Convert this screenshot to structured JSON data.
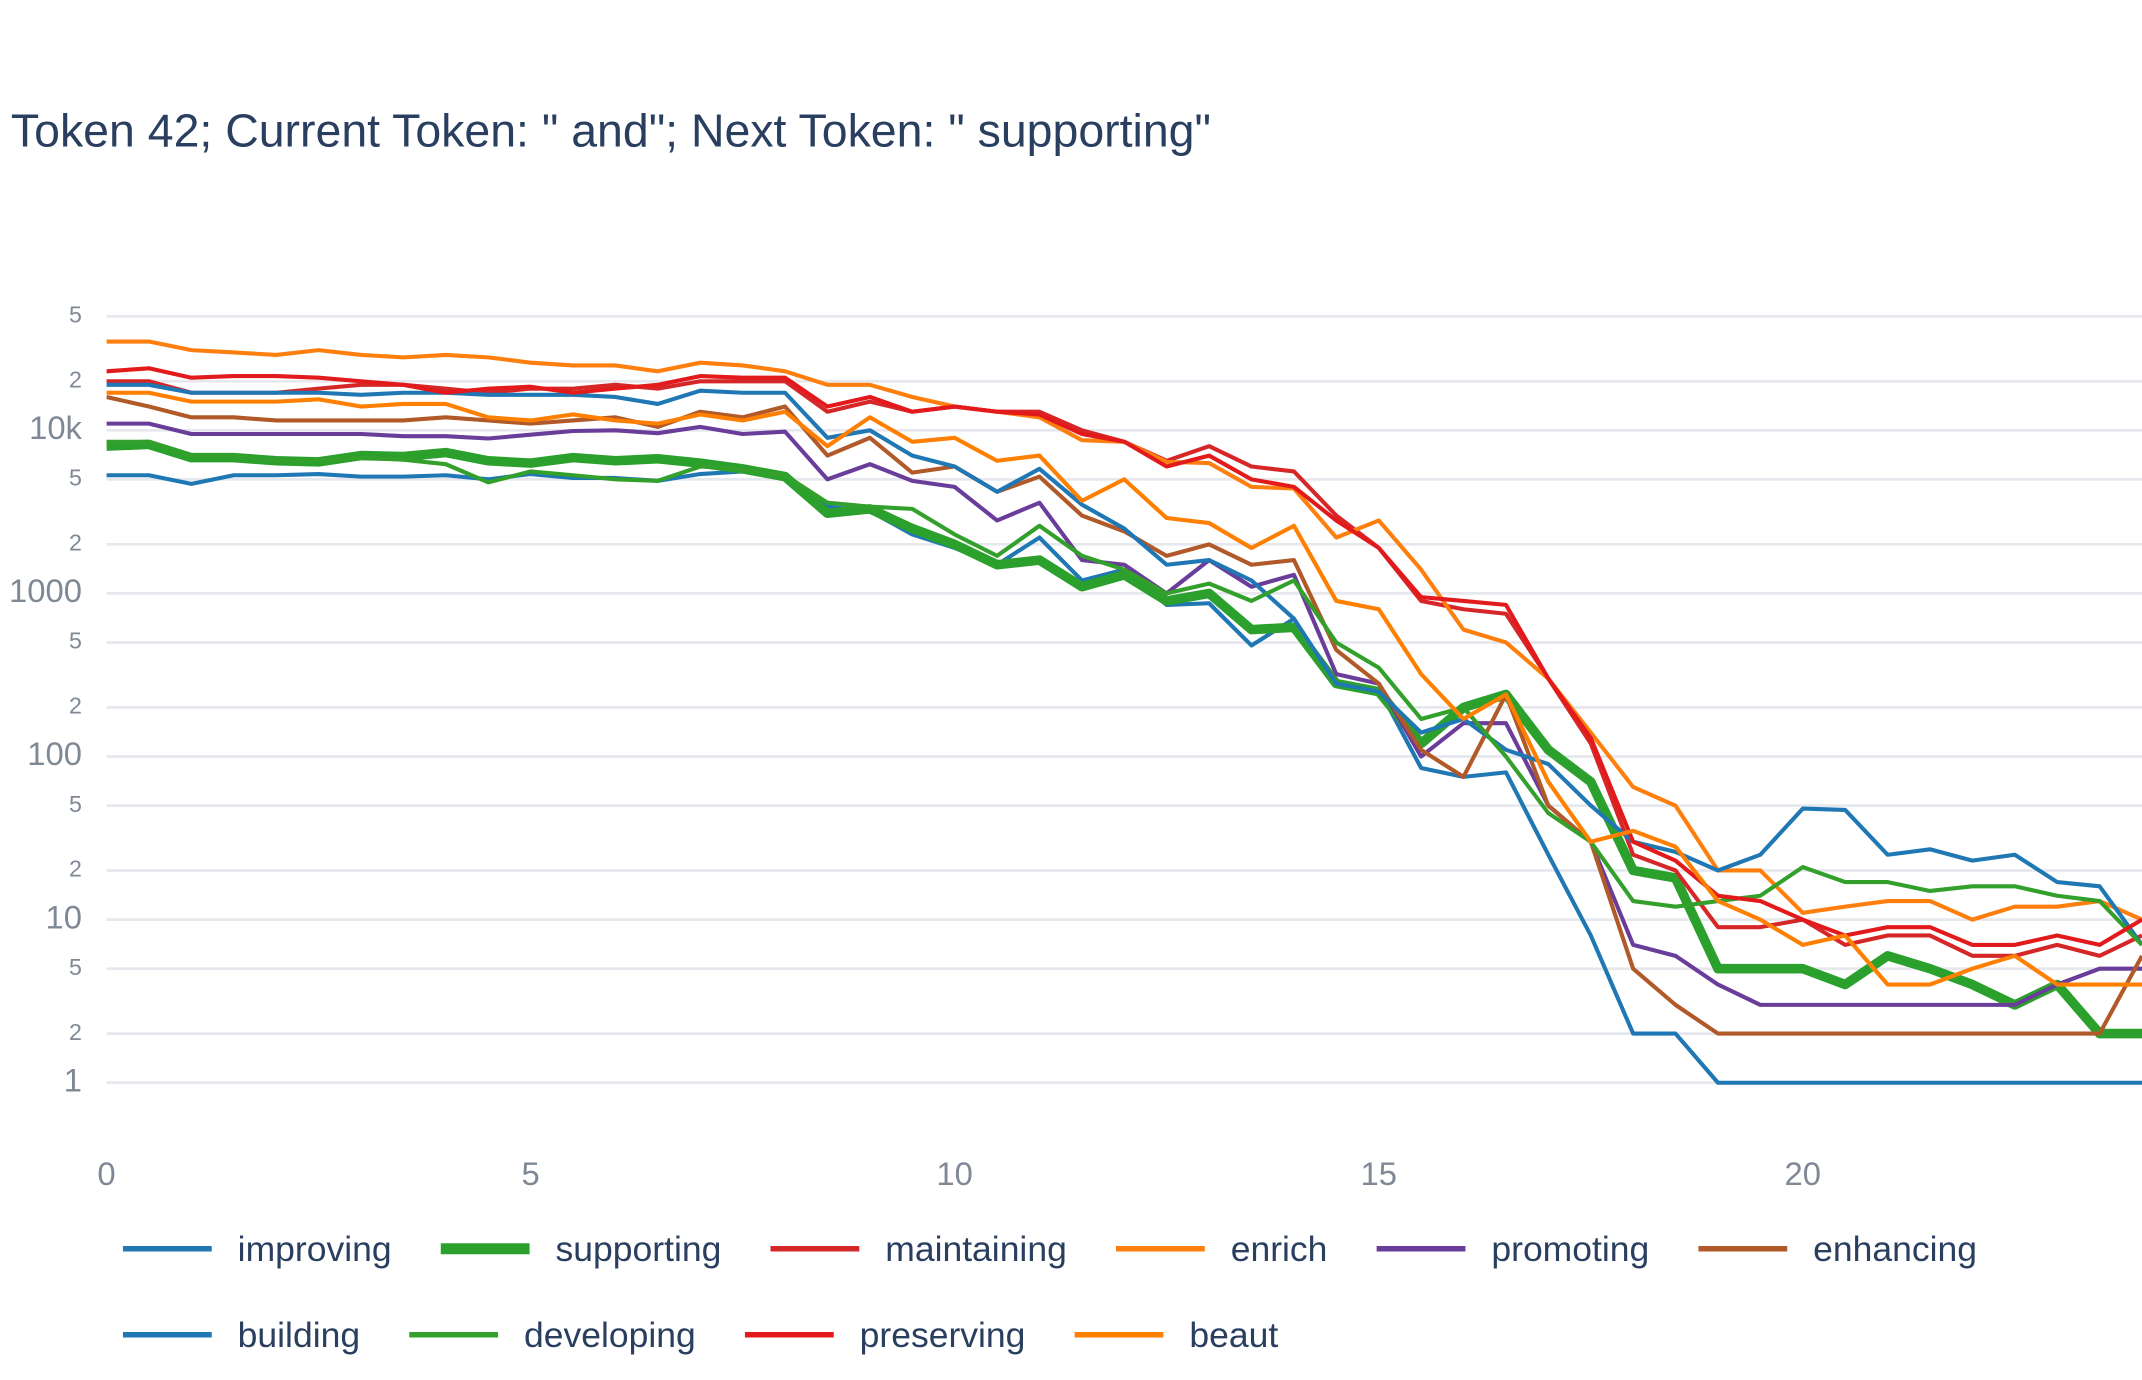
{
  "chart_data": {
    "type": "line",
    "title": "Token 42; Current Token: \" and\"; Next Token: \" supporting\"",
    "log_y": true,
    "grid": true,
    "xlim": [
      0,
      24
    ],
    "xticks": [
      0,
      5,
      10,
      15,
      20
    ],
    "ylim": [
      0.4,
      70000
    ],
    "yticks": [
      1,
      2,
      5,
      10,
      {
        "value": 20,
        "label": "2"
      },
      {
        "value": 50,
        "label": "5"
      },
      100,
      {
        "value": 200,
        "label": "2"
      },
      {
        "value": 500,
        "label": "5"
      },
      1000,
      {
        "value": 2000,
        "label": "2"
      },
      {
        "value": 5000,
        "label": "5"
      },
      {
        "value": 10000,
        "label": "10k"
      },
      {
        "value": 20000,
        "label": "2"
      },
      {
        "value": 50000,
        "label": "5"
      }
    ],
    "x": [
      0,
      0.5,
      1,
      1.5,
      2,
      2.5,
      3,
      3.5,
      4,
      4.5,
      5,
      5.5,
      6,
      6.5,
      7,
      7.5,
      8,
      8.5,
      9,
      9.5,
      10,
      10.5,
      11,
      11.5,
      12,
      12.5,
      13,
      13.5,
      14,
      14.5,
      15,
      15.5,
      16,
      16.5,
      17,
      17.5,
      18,
      18.5,
      19,
      19.5,
      20,
      20.5,
      21,
      21.5,
      22,
      22.5,
      23,
      23.5,
      24
    ],
    "series": [
      {
        "name": "improving",
        "color": "#1f77b4",
        "line_width": 3,
        "values": [
          5300,
          5300,
          4700,
          5300,
          5300,
          5400,
          5200,
          5200,
          5300,
          5000,
          5400,
          5100,
          5100,
          4900,
          5400,
          5600,
          5000,
          3400,
          3200,
          2300,
          1900,
          1500,
          2200,
          1200,
          1400,
          850,
          870,
          480,
          700,
          270,
          260,
          85,
          75,
          80,
          25,
          8,
          2,
          2,
          1,
          1,
          1,
          1,
          1,
          1,
          1,
          1,
          1,
          1,
          1
        ]
      },
      {
        "name": "supporting",
        "color": "#2ca02c",
        "line_width": 7,
        "values": [
          8000,
          8200,
          6800,
          6800,
          6500,
          6400,
          7000,
          6900,
          7300,
          6500,
          6300,
          6800,
          6500,
          6700,
          6300,
          5800,
          5200,
          3100,
          3300,
          2500,
          2000,
          1500,
          1600,
          1100,
          1300,
          900,
          1000,
          600,
          620,
          280,
          250,
          120,
          200,
          240,
          110,
          70,
          20,
          18,
          5,
          5,
          5,
          4,
          6,
          5,
          4,
          3,
          4,
          2,
          2
        ]
      },
      {
        "name": "maintaining",
        "color": "#d62728",
        "line_width": 3,
        "values": [
          20000,
          20000,
          17000,
          17000,
          17000,
          18000,
          19000,
          19000,
          18000,
          17000,
          18000,
          18000,
          19000,
          18000,
          20000,
          20000,
          20000,
          13000,
          15000,
          13000,
          14000,
          13000,
          13000,
          10000,
          8500,
          6500,
          8000,
          6000,
          5600,
          3000,
          1900,
          900,
          800,
          750,
          300,
          120,
          25,
          20,
          9,
          9,
          10,
          7,
          8,
          8,
          6,
          6,
          7,
          6,
          8
        ]
      },
      {
        "name": "enrich",
        "color": "#ff7f0e",
        "line_width": 3,
        "values": [
          35000,
          35000,
          31000,
          30000,
          29000,
          31000,
          29000,
          28000,
          29000,
          28000,
          26000,
          25000,
          25000,
          23000,
          26000,
          25000,
          23000,
          19000,
          19000,
          16000,
          14000,
          13000,
          12000,
          8700,
          8500,
          6400,
          6300,
          4500,
          4400,
          2200,
          2800,
          1400,
          600,
          500,
          300,
          140,
          65,
          50,
          20,
          20,
          11,
          12,
          13,
          13,
          10,
          12,
          12,
          13,
          10
        ]
      },
      {
        "name": "promoting",
        "color": "#6a3d9a",
        "line_width": 3,
        "values": [
          11000,
          11000,
          9500,
          9500,
          9500,
          9500,
          9500,
          9200,
          9200,
          8900,
          9400,
          9900,
          10000,
          9600,
          10500,
          9500,
          9800,
          5000,
          6200,
          4900,
          4500,
          2800,
          3600,
          1600,
          1500,
          1000,
          1600,
          1100,
          1300,
          320,
          280,
          100,
          160,
          160,
          50,
          30,
          7,
          6,
          4,
          3,
          3,
          3,
          3,
          3,
          3,
          3,
          4,
          5,
          5
        ]
      },
      {
        "name": "enhancing",
        "color": "#b15928",
        "line_width": 3,
        "values": [
          16000,
          14000,
          12000,
          12000,
          11500,
          11500,
          11500,
          11500,
          12000,
          11500,
          11000,
          11500,
          12000,
          10500,
          13000,
          12000,
          14000,
          7000,
          9000,
          5500,
          6000,
          4200,
          5200,
          3000,
          2400,
          1700,
          2000,
          1500,
          1600,
          450,
          280,
          110,
          75,
          240,
          50,
          30,
          5,
          3,
          2,
          2,
          2,
          2,
          2,
          2,
          2,
          2,
          2,
          2,
          6
        ]
      },
      {
        "name": "building",
        "color": "#1f78b4",
        "line_width": 3,
        "values": [
          19000,
          19000,
          17000,
          17000,
          17000,
          17000,
          16500,
          17000,
          17000,
          16500,
          16500,
          16500,
          16000,
          14500,
          17500,
          17000,
          17000,
          9000,
          10000,
          7000,
          6000,
          4200,
          5800,
          3500,
          2500,
          1500,
          1600,
          1200,
          700,
          280,
          250,
          140,
          170,
          110,
          90,
          50,
          30,
          26,
          20,
          25,
          48,
          47,
          25,
          27,
          23,
          25,
          17,
          16,
          7
        ]
      },
      {
        "name": "developing",
        "color": "#33a02c",
        "line_width": 3,
        "values": [
          8500,
          8500,
          7000,
          7000,
          6500,
          6500,
          6800,
          6600,
          6200,
          4800,
          5600,
          5300,
          5000,
          4900,
          6000,
          5800,
          5300,
          3600,
          3400,
          3300,
          2300,
          1700,
          2600,
          1700,
          1400,
          1000,
          1150,
          900,
          1200,
          500,
          350,
          170,
          200,
          100,
          45,
          30,
          13,
          12,
          13,
          14,
          21,
          17,
          17,
          15,
          16,
          16,
          14,
          13,
          7
        ]
      },
      {
        "name": "preserving",
        "color": "#e31a1c",
        "line_width": 3,
        "values": [
          23000,
          24000,
          21000,
          21500,
          21500,
          21000,
          20000,
          19000,
          17000,
          18000,
          18500,
          17000,
          18000,
          19000,
          21500,
          21000,
          21000,
          14000,
          16000,
          13000,
          14000,
          13000,
          12500,
          9500,
          8500,
          6000,
          7000,
          5000,
          4500,
          2800,
          1900,
          950,
          900,
          850,
          300,
          130,
          30,
          23,
          14,
          13,
          10,
          8,
          9,
          9,
          7,
          7,
          8,
          7,
          10
        ]
      },
      {
        "name": "beaut",
        "color": "#ff7f00",
        "line_width": 3,
        "values": [
          17000,
          17000,
          15000,
          15000,
          15000,
          15500,
          14000,
          14500,
          14500,
          12000,
          11500,
          12500,
          11500,
          11000,
          12500,
          11500,
          13000,
          8000,
          12000,
          8500,
          9000,
          6500,
          7000,
          3700,
          5000,
          2900,
          2700,
          1900,
          2600,
          900,
          800,
          320,
          170,
          240,
          70,
          30,
          35,
          28,
          13,
          10,
          7,
          8,
          4,
          4,
          5,
          6,
          4,
          4,
          4
        ]
      }
    ]
  }
}
